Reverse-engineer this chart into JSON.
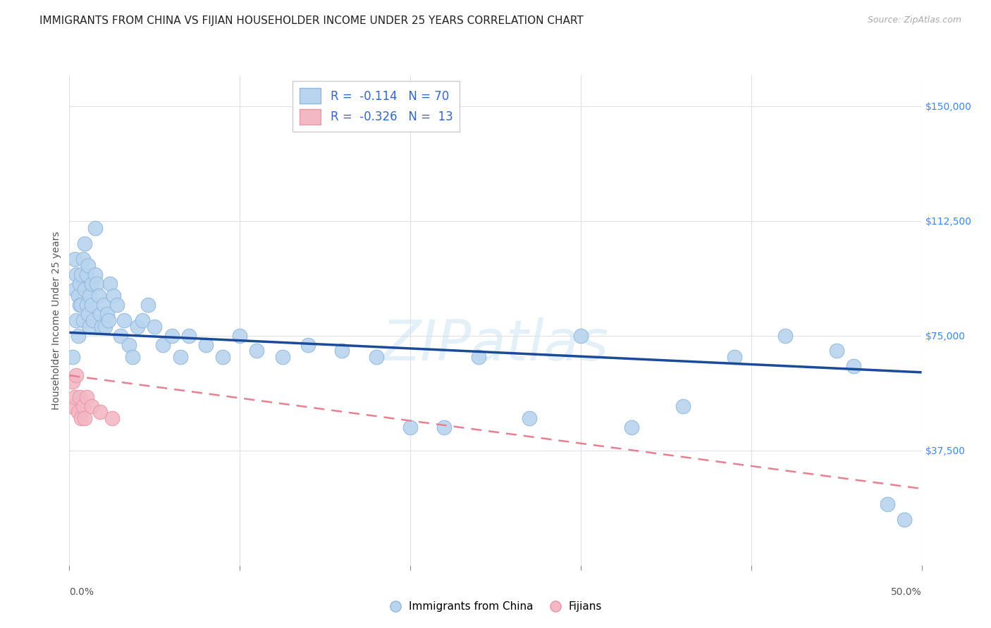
{
  "title": "IMMIGRANTS FROM CHINA VS FIJIAN HOUSEHOLDER INCOME UNDER 25 YEARS CORRELATION CHART",
  "source": "Source: ZipAtlas.com",
  "ylabel": "Householder Income Under 25 years",
  "xlim": [
    0.0,
    0.5
  ],
  "ylim": [
    0,
    160000
  ],
  "yticks": [
    0,
    37500,
    75000,
    112500,
    150000
  ],
  "ytick_labels": [
    "",
    "$37,500",
    "$75,000",
    "$112,500",
    "$150,000"
  ],
  "xtick_positions": [
    0.0,
    0.1,
    0.2,
    0.3,
    0.4,
    0.5
  ],
  "xtick_labels": [
    "0.0%",
    "",
    "",
    "",
    "",
    "50.0%"
  ],
  "background_color": "#ffffff",
  "grid_color": "#e0e0e8",
  "watermark": "ZIPatlas",
  "china_color": "#b8d4ee",
  "china_edge": "#90b8e0",
  "fijian_color": "#f4b8c4",
  "fijian_edge": "#e898a8",
  "line_china_color": "#1a4a9a",
  "line_fijian_color": "#e88090",
  "china_scatter_x": [
    0.002,
    0.003,
    0.003,
    0.004,
    0.004,
    0.005,
    0.005,
    0.006,
    0.006,
    0.007,
    0.007,
    0.008,
    0.008,
    0.009,
    0.009,
    0.01,
    0.01,
    0.011,
    0.011,
    0.012,
    0.012,
    0.013,
    0.013,
    0.014,
    0.015,
    0.015,
    0.016,
    0.017,
    0.018,
    0.019,
    0.02,
    0.021,
    0.022,
    0.023,
    0.024,
    0.026,
    0.028,
    0.03,
    0.032,
    0.035,
    0.037,
    0.04,
    0.043,
    0.046,
    0.05,
    0.055,
    0.06,
    0.065,
    0.07,
    0.08,
    0.09,
    0.1,
    0.11,
    0.125,
    0.14,
    0.16,
    0.18,
    0.2,
    0.22,
    0.24,
    0.27,
    0.3,
    0.33,
    0.36,
    0.39,
    0.42,
    0.45,
    0.46,
    0.48,
    0.49
  ],
  "china_scatter_y": [
    68000,
    100000,
    90000,
    95000,
    80000,
    75000,
    88000,
    85000,
    92000,
    85000,
    95000,
    100000,
    80000,
    105000,
    90000,
    95000,
    85000,
    98000,
    82000,
    88000,
    78000,
    85000,
    92000,
    80000,
    110000,
    95000,
    92000,
    88000,
    82000,
    78000,
    85000,
    78000,
    82000,
    80000,
    92000,
    88000,
    85000,
    75000,
    80000,
    72000,
    68000,
    78000,
    80000,
    85000,
    78000,
    72000,
    75000,
    68000,
    75000,
    72000,
    68000,
    75000,
    70000,
    68000,
    72000,
    70000,
    68000,
    45000,
    45000,
    68000,
    48000,
    75000,
    45000,
    52000,
    68000,
    75000,
    70000,
    65000,
    20000,
    15000
  ],
  "fijian_scatter_x": [
    0.001,
    0.002,
    0.003,
    0.004,
    0.005,
    0.006,
    0.007,
    0.008,
    0.009,
    0.01,
    0.013,
    0.018,
    0.025
  ],
  "fijian_scatter_y": [
    52000,
    60000,
    55000,
    62000,
    50000,
    55000,
    48000,
    52000,
    48000,
    55000,
    52000,
    50000,
    48000
  ],
  "china_trendline_x": [
    0.0,
    0.5
  ],
  "china_trendline_y": [
    76000,
    63000
  ],
  "fijian_trendline_x": [
    0.0,
    0.5
  ],
  "fijian_trendline_y": [
    62000,
    25000
  ],
  "title_fontsize": 11,
  "source_fontsize": 9,
  "axis_label_fontsize": 10,
  "tick_fontsize": 10,
  "legend_fontsize": 11
}
